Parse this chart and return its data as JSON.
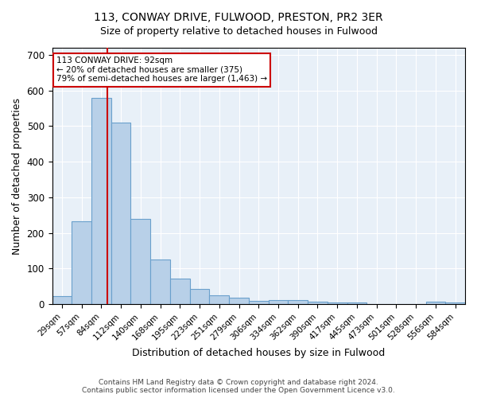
{
  "title1": "113, CONWAY DRIVE, FULWOOD, PRESTON, PR2 3ER",
  "title2": "Size of property relative to detached houses in Fulwood",
  "xlabel": "Distribution of detached houses by size in Fulwood",
  "ylabel": "Number of detached properties",
  "categories": [
    "29sqm",
    "57sqm",
    "84sqm",
    "112sqm",
    "140sqm",
    "168sqm",
    "195sqm",
    "223sqm",
    "251sqm",
    "279sqm",
    "306sqm",
    "334sqm",
    "362sqm",
    "390sqm",
    "417sqm",
    "445sqm",
    "473sqm",
    "501sqm",
    "528sqm",
    "556sqm",
    "584sqm"
  ],
  "values": [
    23,
    232,
    580,
    510,
    240,
    126,
    72,
    42,
    25,
    17,
    10,
    12,
    11,
    6,
    5,
    5,
    0,
    0,
    0,
    7,
    5
  ],
  "bar_color": "#b8d0e8",
  "bar_edge_color": "#6aa0cc",
  "bg_color": "#e8f0f8",
  "grid_color": "#ffffff",
  "vline_color": "#cc0000",
  "annotation_text": "113 CONWAY DRIVE: 92sqm\n← 20% of detached houses are smaller (375)\n79% of semi-detached houses are larger (1,463) →",
  "annotation_box_color": "#ffffff",
  "annotation_box_edge": "#cc0000",
  "footer": "Contains HM Land Registry data © Crown copyright and database right 2024.\nContains public sector information licensed under the Open Government Licence v3.0.",
  "ylim": [
    0,
    720
  ],
  "yticks": [
    0,
    100,
    200,
    300,
    400,
    500,
    600,
    700
  ]
}
